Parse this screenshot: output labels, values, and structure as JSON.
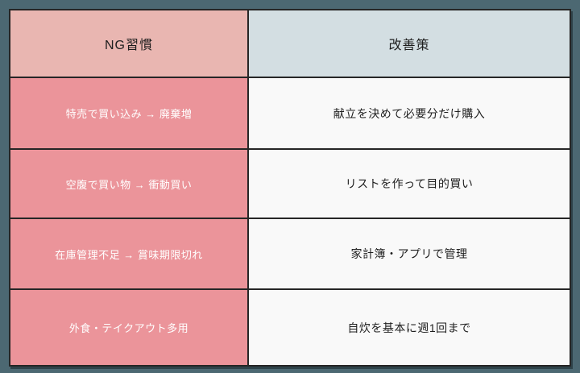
{
  "table": {
    "columns": [
      {
        "key": "ng",
        "label": "NG習慣"
      },
      {
        "key": "fix",
        "label": "改善策"
      }
    ],
    "rows": [
      {
        "ng": "特売で買い込み → 廃棄増",
        "fix": "献立を決めて必要分だけ購入"
      },
      {
        "ng": "空腹で買い物 → 衝動買い",
        "fix": "リストを作って目的買い"
      },
      {
        "ng": "在庫管理不足 → 賞味期限切れ",
        "fix": "家計簿・アプリで管理"
      },
      {
        "ng": "外食・テイクアウト多用",
        "fix": "自炊を基本に週1回まで"
      }
    ]
  },
  "colors": {
    "canvas_bg": "#4c6872",
    "header_ng_bg": "#e9b6b1",
    "header_fix_bg": "#d3dee2",
    "cell_ng_bg": "#eb949a",
    "cell_fix_bg": "#f9f9f9",
    "border": "#262626",
    "header_text": "#1e1e1e",
    "ng_text": "#ffffff",
    "fix_text": "#1e1e1e"
  }
}
